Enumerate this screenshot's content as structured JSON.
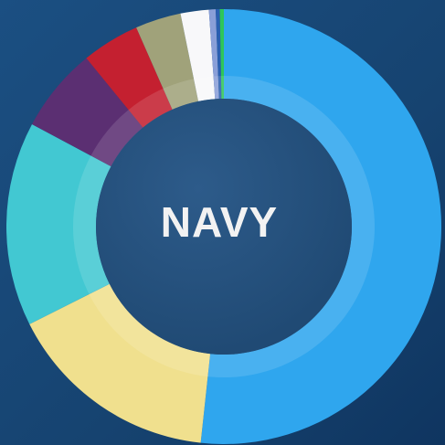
{
  "chart_data": {
    "type": "donut",
    "title": "NAVY",
    "values": [
      51.7,
      15.9,
      15.2,
      6.3,
      4.3,
      3.4,
      2.1,
      0.5,
      0.3,
      0.3
    ],
    "colors": [
      "#2fa6ee",
      "#f0e08e",
      "#42c8d2",
      "#5b2f72",
      "#c42030",
      "#a0a27a",
      "#f8f8fa",
      "#8a9fd8",
      "#2a5fb0",
      "#2ec65a"
    ]
  }
}
